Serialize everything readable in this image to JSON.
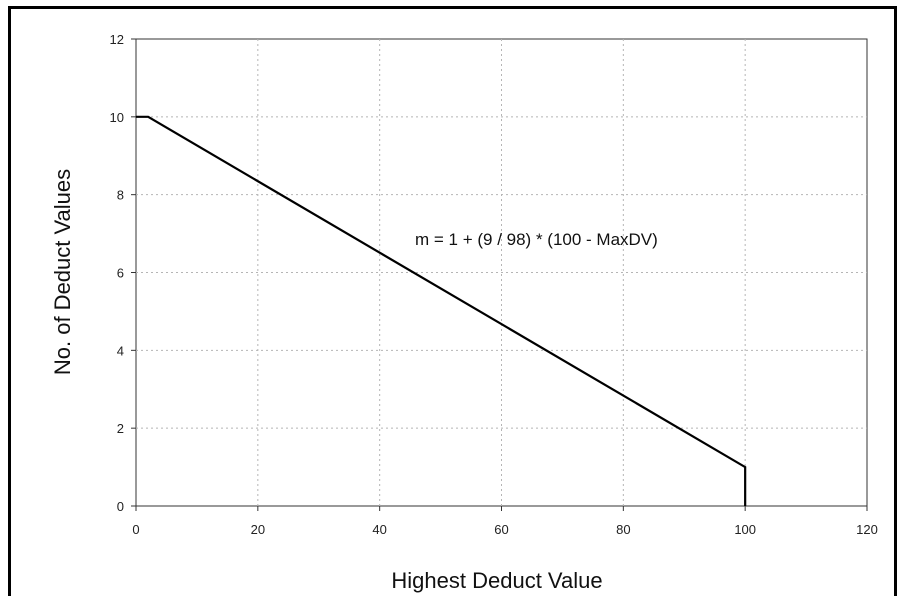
{
  "chart_data": {
    "type": "line",
    "title": "",
    "xlabel": "Highest Deduct Value",
    "ylabel": "No. of Deduct Values",
    "xlim": [
      0,
      120
    ],
    "ylim": [
      0,
      12
    ],
    "xticks": [
      0,
      20,
      40,
      60,
      80,
      100,
      120
    ],
    "yticks": [
      0,
      2,
      4,
      6,
      8,
      10,
      12
    ],
    "grid": true,
    "series": [
      {
        "points": [
          {
            "x": 0,
            "y": 10
          },
          {
            "x": 2,
            "y": 10
          },
          {
            "x": 100,
            "y": 1
          },
          {
            "x": 100,
            "y": 0
          }
        ]
      }
    ],
    "annotations": [
      {
        "text": "m = 1 + (9 / 98) * (100 - MaxDV)",
        "x": 45,
        "y": 7
      }
    ]
  }
}
